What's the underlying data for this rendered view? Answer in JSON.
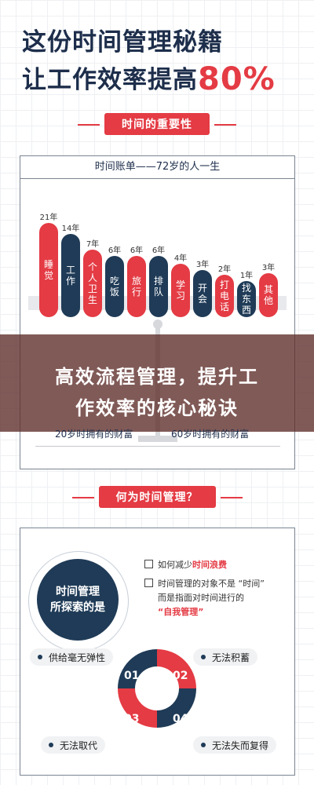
{
  "header": {
    "title_line1": "这份时间管理秘籍",
    "title_line2_prefix": "让工作效率提高",
    "title_line2_accent": "80%"
  },
  "section1": {
    "label": "时间的重要性"
  },
  "ledger": {
    "title": "时间账单——72岁的人一生",
    "bars": [
      {
        "years": "21年",
        "label": "睡觉",
        "color": "#e43b44"
      },
      {
        "years": "14年",
        "label": "工作",
        "color": "#1f3b57"
      },
      {
        "years": "7年",
        "label": "个人卫生",
        "color": "#e43b44"
      },
      {
        "years": "6年",
        "label": "吃饭",
        "color": "#1f3b57"
      },
      {
        "years": "6年",
        "label": "旅行",
        "color": "#e43b44"
      },
      {
        "years": "6年",
        "label": "排队",
        "color": "#1f3b57"
      },
      {
        "years": "4年",
        "label": "学习",
        "color": "#e43b44"
      },
      {
        "years": "3年",
        "label": "开会",
        "color": "#1f3b57"
      },
      {
        "years": "2年",
        "label": "打电话",
        "color": "#e43b44"
      },
      {
        "years": "1年",
        "label": "找东西",
        "color": "#1f3b57"
      },
      {
        "years": "3年",
        "label": "其他",
        "color": "#e43b44"
      }
    ],
    "wealth_left": "20岁时拥有的财富",
    "wealth_right": "60岁时拥有的财富"
  },
  "banner": {
    "line1": "高效流程管理，提升工",
    "line2": "作效率的核心秘诀"
  },
  "section2": {
    "label": "何为时间管理？"
  },
  "concept": {
    "circle_line1": "时间管理",
    "circle_line2": "所探索的是",
    "q1_prefix": "如何减少",
    "q1_accent": "时间浪费",
    "q2_line1": "时间管理的对象不是 “时间”",
    "q2_line2": "而是指面对时间进行的",
    "q2_accent": "“自我管理”"
  },
  "quadrants": {
    "n1": "01",
    "n2": "02",
    "n3": "03",
    "n4": "04",
    "tag_tl": "供给毫无弹性",
    "tag_tr": "无法积蓄",
    "tag_bl": "无法取代",
    "tag_br": "无法失而复得"
  },
  "colors": {
    "red": "#e43b44",
    "navy": "#1f3b57"
  }
}
